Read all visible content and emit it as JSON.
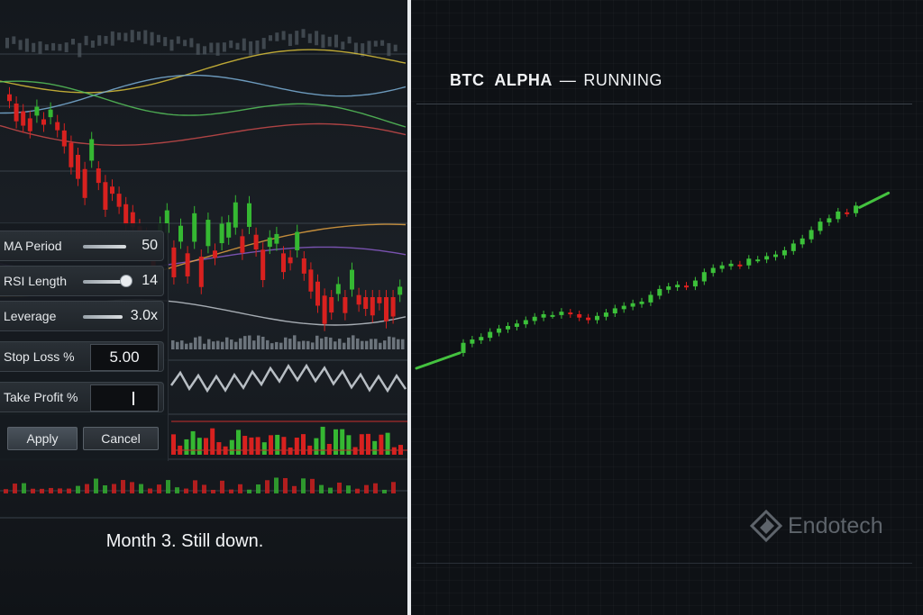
{
  "controls": {
    "ma_period": {
      "label": "MA Period",
      "value": "50",
      "slider_fraction": 1.0
    },
    "rsi_length": {
      "label": "RSI Length",
      "value": "14",
      "slider_fraction": 0.85
    },
    "leverage": {
      "label": "Leverage",
      "value": "3.0x",
      "slider_fraction": 1.0
    },
    "stop_loss": {
      "label": "Stop Loss %",
      "value": "5.00"
    },
    "take_profit": {
      "label": "Take Profit %",
      "value": ""
    },
    "apply_label": "Apply",
    "cancel_label": "Cancel"
  },
  "caption": "Month 3. Still down.",
  "right": {
    "title_name": "BTC  ALPHA",
    "title_sep": "—",
    "title_status": "RUNNING",
    "watermark": "Endotech"
  },
  "colors": {
    "up": "#3cc13a",
    "down": "#e0201f",
    "line_green": "#44c23f"
  },
  "icons": {
    "watermark_logo": "endotech-diamond-icon"
  },
  "chart_data": {
    "type": "candlestick",
    "title": "",
    "xlabel": "",
    "ylabel": "",
    "grid": true,
    "candles": [
      {
        "o": 10.0,
        "c": 11.2
      },
      {
        "o": 11.1,
        "c": 11.6
      },
      {
        "o": 11.5,
        "c": 11.9
      },
      {
        "o": 11.8,
        "c": 12.5
      },
      {
        "o": 12.4,
        "c": 12.9
      },
      {
        "o": 12.8,
        "c": 13.2
      },
      {
        "o": 13.1,
        "c": 13.5
      },
      {
        "o": 13.4,
        "c": 13.9
      },
      {
        "o": 13.8,
        "c": 14.3
      },
      {
        "o": 14.2,
        "c": 14.6
      },
      {
        "o": 14.5,
        "c": 14.5
      },
      {
        "o": 14.5,
        "c": 14.9
      },
      {
        "o": 14.8,
        "c": 14.6
      },
      {
        "o": 14.6,
        "c": 14.2
      },
      {
        "o": 14.2,
        "c": 13.9
      },
      {
        "o": 13.9,
        "c": 14.4
      },
      {
        "o": 14.3,
        "c": 14.8
      },
      {
        "o": 14.7,
        "c": 15.3
      },
      {
        "o": 15.2,
        "c": 15.6
      },
      {
        "o": 15.5,
        "c": 15.9
      },
      {
        "o": 15.8,
        "c": 16.1
      },
      {
        "o": 16.0,
        "c": 16.9
      },
      {
        "o": 16.8,
        "c": 17.6
      },
      {
        "o": 17.5,
        "c": 17.9
      },
      {
        "o": 17.8,
        "c": 18.1
      },
      {
        "o": 18.0,
        "c": 17.9
      },
      {
        "o": 17.9,
        "c": 18.6
      },
      {
        "o": 18.5,
        "c": 19.6
      },
      {
        "o": 19.5,
        "c": 20.1
      },
      {
        "o": 20.0,
        "c": 20.4
      },
      {
        "o": 20.3,
        "c": 20.6
      },
      {
        "o": 20.5,
        "c": 20.4
      },
      {
        "o": 20.4,
        "c": 21.2
      },
      {
        "o": 21.1,
        "c": 21.1
      },
      {
        "o": 21.1,
        "c": 21.5
      },
      {
        "o": 21.4,
        "c": 21.7
      },
      {
        "o": 21.6,
        "c": 22.2
      },
      {
        "o": 22.1,
        "c": 23.0
      },
      {
        "o": 22.9,
        "c": 23.6
      },
      {
        "o": 23.5,
        "c": 24.6
      },
      {
        "o": 24.5,
        "c": 25.6
      },
      {
        "o": 25.5,
        "c": 26.0
      },
      {
        "o": 25.9,
        "c": 26.8
      },
      {
        "o": 26.7,
        "c": 26.6
      },
      {
        "o": 26.6,
        "c": 27.5
      }
    ],
    "lead_in_line": [
      8.5,
      10.0
    ],
    "lead_out_line": [
      27.5,
      29.0
    ],
    "ylim": [
      7,
      30
    ]
  }
}
